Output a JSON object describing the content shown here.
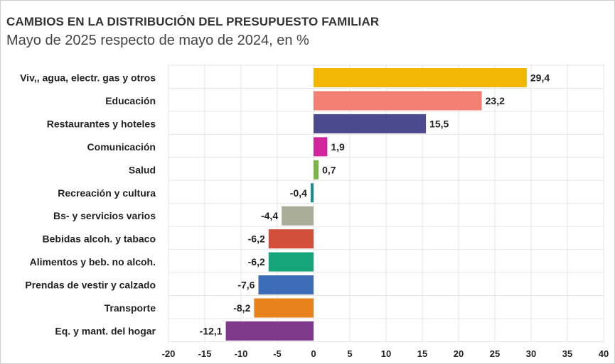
{
  "title": "CAMBIOS EN LA DISTRIBUCIÓN DEL PRESUPUESTO FAMILIAR",
  "subtitle": "Mayo de 2025 respecto de mayo de 2024, en %",
  "chart_data": {
    "type": "bar",
    "orientation": "horizontal",
    "categories": [
      "Viv,, agua, electr. gas y otros",
      "Educación",
      "Restaurantes y hoteles",
      "Comunicación",
      "Salud",
      "Recreación y cultura",
      "Bs-  y servicios varios",
      "Bebidas alcoh. y tabaco",
      "Alimentos y beb. no alcoh.",
      "Prendas de vestir y calzado",
      "Transporte",
      "Eq. y mant. del hogar"
    ],
    "values": [
      29.4,
      23.2,
      15.5,
      1.9,
      0.7,
      -0.4,
      -4.4,
      -6.2,
      -6.2,
      -7.6,
      -8.2,
      -12.1
    ],
    "value_labels": [
      "29,4",
      "23,2",
      "15,5",
      "1,9",
      "0,7",
      "-0,4",
      "-4,4",
      "-6,2",
      "-6,2",
      "-7,6",
      "-8,2",
      "-12,1"
    ],
    "colors": [
      "#f2b705",
      "#f47f73",
      "#4c4a8e",
      "#d1259e",
      "#7ab648",
      "#1a8a96",
      "#a9ad9a",
      "#d2503b",
      "#16a47a",
      "#3d6cb6",
      "#e8821c",
      "#7d3a8c"
    ],
    "xlim": [
      -20,
      40
    ],
    "xticks": [
      -20,
      -15,
      -10,
      -5,
      0,
      5,
      10,
      15,
      20,
      25,
      30,
      35,
      40
    ],
    "grid": true,
    "xlabel": "",
    "ylabel": ""
  }
}
